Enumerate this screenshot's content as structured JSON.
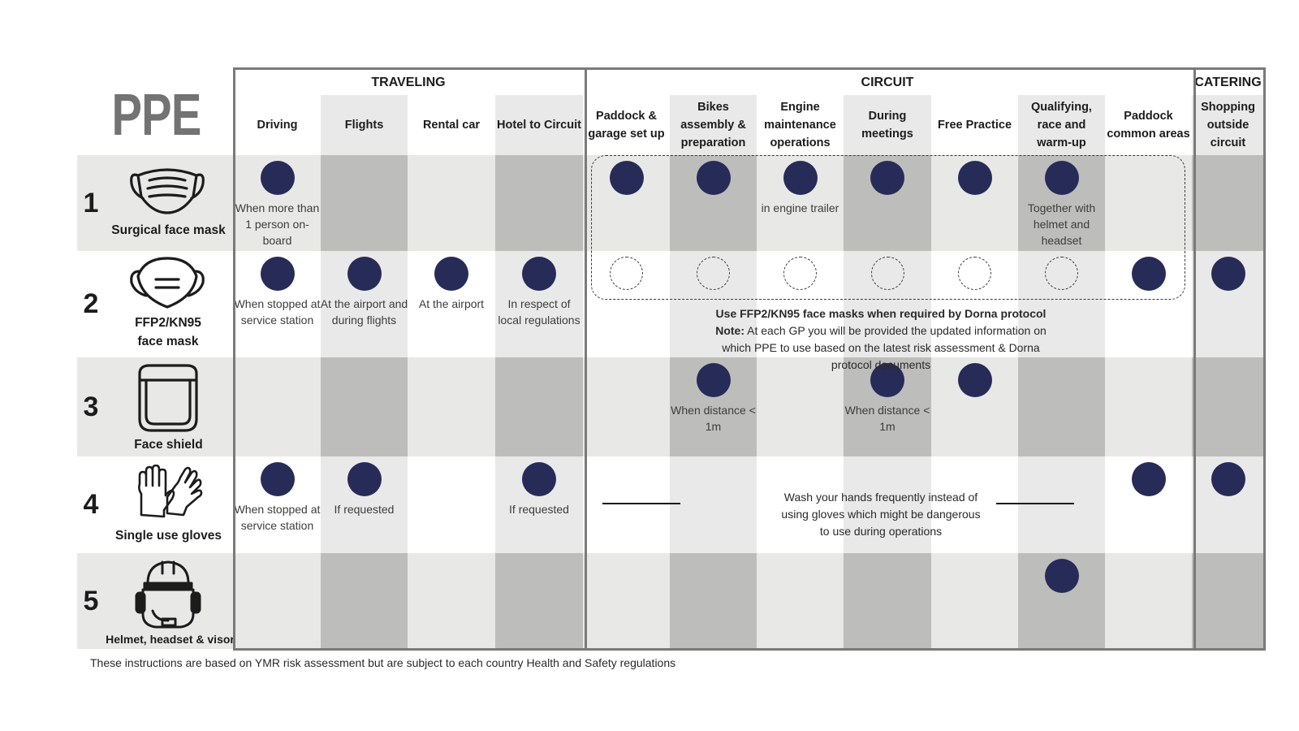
{
  "title": "PPE",
  "groups": {
    "traveling": "TRAVELING",
    "circuit": "CIRCUIT",
    "catering": "CATERING"
  },
  "columns": [
    "Driving",
    "Flights",
    "Rental car",
    "Hotel to Circuit",
    "Paddock & garage set up",
    "Bikes assembly & preparation",
    "Engine maintenance operations",
    "During meetings",
    "Free Practice",
    "Qualifying, race and warm-up",
    "Paddock common areas",
    "Shopping outside circuit"
  ],
  "rows": [
    {
      "number": "1",
      "label": "Surgical face mask",
      "icon": "surgical-mask-icon"
    },
    {
      "number": "2",
      "label": "FFP2/KN95 face mask",
      "icon": "ffp2-mask-icon"
    },
    {
      "number": "3",
      "label": "Face shield",
      "icon": "face-shield-icon"
    },
    {
      "number": "4",
      "label": "Single use gloves",
      "icon": "gloves-icon"
    },
    {
      "number": "5",
      "label": "Helmet, headset & visor",
      "icon": "helmet-headset-visor-icon"
    }
  ],
  "cells": [
    {
      "row": 0,
      "col": 0,
      "mark": "filled",
      "note": "When more than 1 person on-board"
    },
    {
      "row": 0,
      "col": 4,
      "mark": "filled"
    },
    {
      "row": 0,
      "col": 5,
      "mark": "filled"
    },
    {
      "row": 0,
      "col": 6,
      "mark": "filled",
      "note": "in engine trailer"
    },
    {
      "row": 0,
      "col": 7,
      "mark": "filled"
    },
    {
      "row": 0,
      "col": 8,
      "mark": "filled"
    },
    {
      "row": 0,
      "col": 9,
      "mark": "filled",
      "note": "Together with helmet and headset"
    },
    {
      "row": 1,
      "col": 0,
      "mark": "filled",
      "note": "When stopped at service station"
    },
    {
      "row": 1,
      "col": 1,
      "mark": "filled",
      "note": "At the airport and during flights"
    },
    {
      "row": 1,
      "col": 2,
      "mark": "filled",
      "note": "At the airport"
    },
    {
      "row": 1,
      "col": 3,
      "mark": "filled",
      "note": "In respect of local regulations"
    },
    {
      "row": 1,
      "col": 4,
      "mark": "outline"
    },
    {
      "row": 1,
      "col": 5,
      "mark": "outline"
    },
    {
      "row": 1,
      "col": 6,
      "mark": "outline"
    },
    {
      "row": 1,
      "col": 7,
      "mark": "outline"
    },
    {
      "row": 1,
      "col": 8,
      "mark": "outline"
    },
    {
      "row": 1,
      "col": 9,
      "mark": "outline"
    },
    {
      "row": 1,
      "col": 10,
      "mark": "filled"
    },
    {
      "row": 1,
      "col": 11,
      "mark": "filled"
    },
    {
      "row": 2,
      "col": 5,
      "mark": "filled",
      "note": "When distance < 1m"
    },
    {
      "row": 2,
      "col": 7,
      "mark": "filled",
      "note": "When distance < 1m"
    },
    {
      "row": 2,
      "col": 8,
      "mark": "filled"
    },
    {
      "row": 3,
      "col": 0,
      "mark": "filled",
      "note": "When stopped at service station"
    },
    {
      "row": 3,
      "col": 1,
      "mark": "filled",
      "note": "If requested"
    },
    {
      "row": 3,
      "col": 3,
      "mark": "filled",
      "note": "If requested"
    },
    {
      "row": 3,
      "col": 10,
      "mark": "filled"
    },
    {
      "row": 3,
      "col": 11,
      "mark": "filled"
    },
    {
      "row": 4,
      "col": 9,
      "mark": "filled"
    }
  ],
  "ffp2_note": {
    "heading": "Use FFP2/KN95 face masks when required by Dorna protocol",
    "note_label": "Note:",
    "note_text": "At each GP you will be provided the updated information on which PPE to use based on the latest risk assessment & Dorna protocol documents"
  },
  "gloves_note": "Wash your hands frequently instead of using gloves which might be dangerous to use during operations",
  "footer": "These instructions are based on YMR risk assessment but are subject to each country Health and Safety regulations",
  "colors": {
    "dot": "#272b58",
    "frame": "#7a7a7a",
    "light_band": "#e8e8e6",
    "dark_band": "#bdbdbb",
    "light_stripe": "#e9e9e9",
    "title_grey": "#737373"
  }
}
